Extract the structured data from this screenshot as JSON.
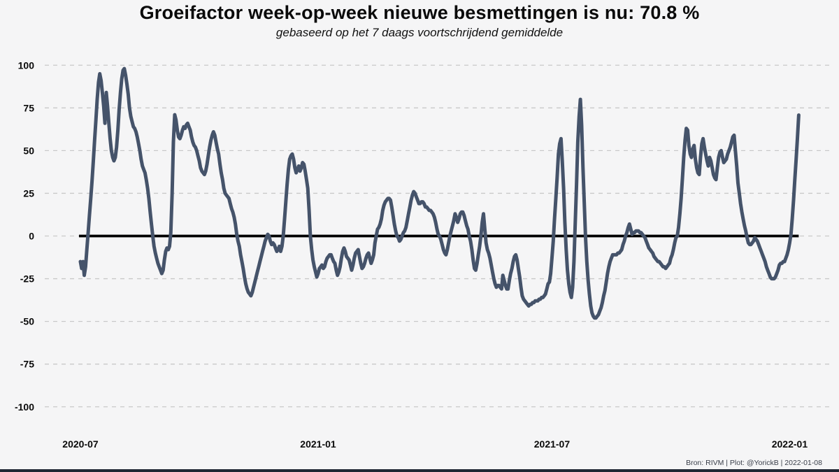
{
  "page": {
    "background": "#f5f5f6",
    "bottom_strip_color": "#202633"
  },
  "footer": {
    "credit": "Bron: RIVM | Plot: @YorickB |  2022-01-08"
  },
  "chart_data": {
    "type": "line",
    "title": "Groeifactor week-op-week nieuwe besmettingen is nu:  70.8 %",
    "subtitle": "gebaseerd op het 7 daags voortschrijdend gemiddelde",
    "current_value_pct": 70.8,
    "line_color": "#45536a",
    "zero_line_color": "#000000",
    "grid_color": "#c9c9c9",
    "grid_style": "dashed",
    "legend": "none",
    "ylabel": "",
    "xlabel": "",
    "ylim": [
      -100,
      100
    ],
    "yticks": [
      100,
      75,
      50,
      25,
      0,
      -25,
      -50,
      -75,
      -100
    ],
    "xticks": [
      {
        "label": "2020-07",
        "day": 0
      },
      {
        "label": "2021-01",
        "day": 184
      },
      {
        "label": "2021-07",
        "day": 365
      },
      {
        "label": "2022-01",
        "day": 549
      }
    ],
    "x_unit": "days since first point (axis ticks shown monthly)",
    "values": [
      -15,
      -19,
      -15,
      -23,
      -18,
      -8,
      2,
      12,
      22,
      32,
      44,
      56,
      68,
      80,
      90,
      95,
      91,
      84,
      76,
      66,
      84,
      76,
      66,
      57,
      50,
      46,
      44,
      46,
      52,
      62,
      74,
      84,
      92,
      97,
      98,
      94,
      89,
      83,
      75,
      70,
      67,
      64,
      63,
      61,
      58,
      54,
      50,
      45,
      41,
      39,
      37,
      33,
      28,
      22,
      14,
      7,
      0,
      -6,
      -10,
      -13,
      -16,
      -18,
      -20,
      -22,
      -20,
      -14,
      -9,
      -7,
      -8,
      -6,
      2,
      25,
      55,
      71,
      68,
      62,
      58,
      57,
      59,
      62,
      64,
      63,
      65,
      66,
      64,
      62,
      58,
      55,
      53,
      52,
      50,
      47,
      44,
      40,
      38,
      37,
      36,
      38,
      42,
      47,
      52,
      56,
      59,
      61,
      59,
      55,
      51,
      48,
      42,
      37,
      33,
      28,
      25,
      24,
      23,
      22,
      19,
      16,
      14,
      11,
      7,
      1,
      -3,
      -6,
      -11,
      -15,
      -19,
      -24,
      -28,
      -31,
      -33,
      -34,
      -35,
      -33,
      -30,
      -27,
      -24,
      -21,
      -18,
      -15,
      -12,
      -9,
      -6,
      -3,
      -1,
      1,
      0,
      -3,
      -5,
      -4,
      -5,
      -7,
      -9,
      -8,
      -6,
      -9,
      -6,
      0,
      10,
      20,
      30,
      39,
      45,
      47,
      48,
      45,
      40,
      37,
      39,
      41,
      38,
      40,
      43,
      42,
      38,
      33,
      28,
      15,
      0,
      -8,
      -14,
      -18,
      -21,
      -24,
      -22,
      -19,
      -18,
      -17,
      -19,
      -18,
      -15,
      -13,
      -12,
      -11,
      -11,
      -13,
      -15,
      -16,
      -20,
      -23,
      -21,
      -18,
      -13,
      -9,
      -7,
      -9,
      -12,
      -13,
      -14,
      -17,
      -20,
      -17,
      -13,
      -10,
      -9,
      -8,
      -12,
      -16,
      -19,
      -18,
      -16,
      -13,
      -11,
      -10,
      -13,
      -16,
      -14,
      -11,
      -4,
      0,
      4,
      5,
      7,
      10,
      15,
      18,
      20,
      21,
      22,
      22,
      21,
      17,
      12,
      7,
      3,
      0,
      -1,
      -3,
      -2,
      0,
      2,
      3,
      5,
      9,
      13,
      17,
      21,
      24,
      26,
      25,
      23,
      21,
      19,
      19,
      20,
      20,
      19,
      17,
      17,
      16,
      15,
      15,
      14,
      13,
      11,
      8,
      4,
      1,
      0,
      -2,
      -5,
      -8,
      -10,
      -11,
      -8,
      -4,
      0,
      3,
      6,
      9,
      13,
      11,
      8,
      10,
      13,
      14,
      14,
      12,
      9,
      6,
      4,
      0,
      -3,
      -8,
      -14,
      -19,
      -20,
      -16,
      -11,
      -6,
      0,
      8,
      13,
      4,
      -4,
      -8,
      -10,
      -13,
      -17,
      -21,
      -25,
      -28,
      -30,
      -29,
      -29,
      -30,
      -31,
      -23,
      -26,
      -29,
      -31,
      -31,
      -26,
      -22,
      -19,
      -15,
      -12,
      -11,
      -14,
      -19,
      -24,
      -30,
      -35,
      -37,
      -38,
      -39,
      -40,
      -41,
      -40,
      -40,
      -39,
      -39,
      -38,
      -38,
      -38,
      -37,
      -37,
      -36,
      -36,
      -35,
      -34,
      -31,
      -28,
      -27,
      -22,
      -13,
      -3,
      10,
      22,
      34,
      48,
      54,
      57,
      44,
      28,
      8,
      -8,
      -20,
      -28,
      -33,
      -36,
      -30,
      -15,
      7,
      30,
      55,
      70,
      80,
      65,
      40,
      20,
      -1,
      -15,
      -26,
      -34,
      -41,
      -45,
      -47,
      -48,
      -48,
      -47,
      -46,
      -44,
      -42,
      -39,
      -35,
      -32,
      -27,
      -22,
      -18,
      -15,
      -13,
      -11,
      -11,
      -11,
      -11,
      -10,
      -10,
      -9,
      -8,
      -5,
      -3,
      0,
      2,
      5,
      7,
      4,
      1,
      2,
      2,
      3,
      3,
      3,
      2,
      2,
      1,
      0,
      -1,
      -3,
      -5,
      -7,
      -8,
      -9,
      -10,
      -12,
      -13,
      -14,
      -15,
      -15,
      -16,
      -17,
      -18,
      -18,
      -19,
      -18,
      -17,
      -16,
      -13,
      -11,
      -8,
      -4,
      -1,
      0,
      5,
      13,
      22,
      34,
      46,
      56,
      63,
      62,
      53,
      48,
      46,
      51,
      53,
      45,
      40,
      37,
      36,
      46,
      54,
      57,
      52,
      48,
      44,
      41,
      46,
      44,
      40,
      36,
      34,
      33,
      40,
      46,
      49,
      50,
      46,
      43,
      44,
      45,
      48,
      50,
      52,
      55,
      58,
      59,
      50,
      41,
      31,
      25,
      19,
      14,
      10,
      6,
      3,
      -1,
      -4,
      -5,
      -5,
      -4,
      -3,
      -1,
      -2,
      -3,
      -5,
      -7,
      -9,
      -11,
      -13,
      -15,
      -18,
      -20,
      -22,
      -24,
      -25,
      -25,
      -25,
      -24,
      -22,
      -20,
      -17,
      -16,
      -16,
      -15,
      -15,
      -13,
      -11,
      -8,
      -4,
      1,
      10,
      21,
      33,
      45,
      57,
      70.8
    ]
  }
}
